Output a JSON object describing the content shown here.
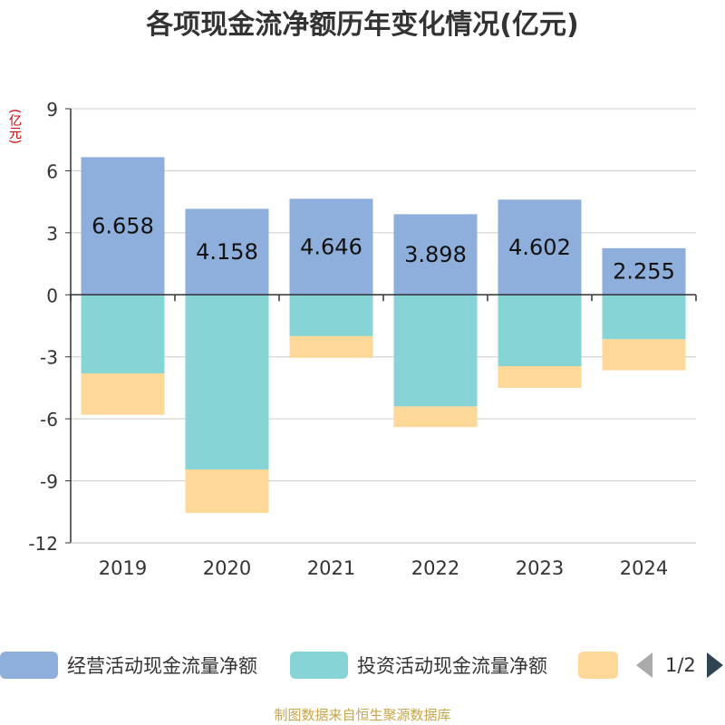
{
  "title": "各项现金流净额历年变化情况(亿元)",
  "unit_label": "(亿元)",
  "source": "制图数据来自恒生聚源数据库",
  "pager": {
    "text": "1/2"
  },
  "chart_data": {
    "type": "bar",
    "stacked": true,
    "categories": [
      "2019",
      "2020",
      "2021",
      "2022",
      "2023",
      "2024"
    ],
    "ylim": [
      -12,
      9
    ],
    "yticks": [
      "9",
      "6",
      "3",
      "0",
      "-3",
      "-6",
      "-9",
      "-12"
    ],
    "ytick_values": [
      9,
      6,
      3,
      0,
      -3,
      -6,
      -9,
      -12
    ],
    "grid": true,
    "legend_position": "bottom",
    "series": [
      {
        "name": "经营活动现金流量净额",
        "color": "#8eaedc",
        "values": [
          6.658,
          4.158,
          4.646,
          3.898,
          4.602,
          2.255
        ],
        "labels": [
          "6.658",
          "4.158",
          "4.646",
          "3.898",
          "4.602",
          "2.255"
        ]
      },
      {
        "name": "投资活动现金流量净额",
        "color": "#86d4d6",
        "values": [
          -3.8,
          -8.45,
          -2.0,
          -5.4,
          -3.45,
          -2.15
        ]
      },
      {
        "name": "",
        "color": "#fed898",
        "values": [
          -2.0,
          -2.1,
          -1.05,
          -1.0,
          -1.05,
          -1.5
        ]
      }
    ]
  }
}
